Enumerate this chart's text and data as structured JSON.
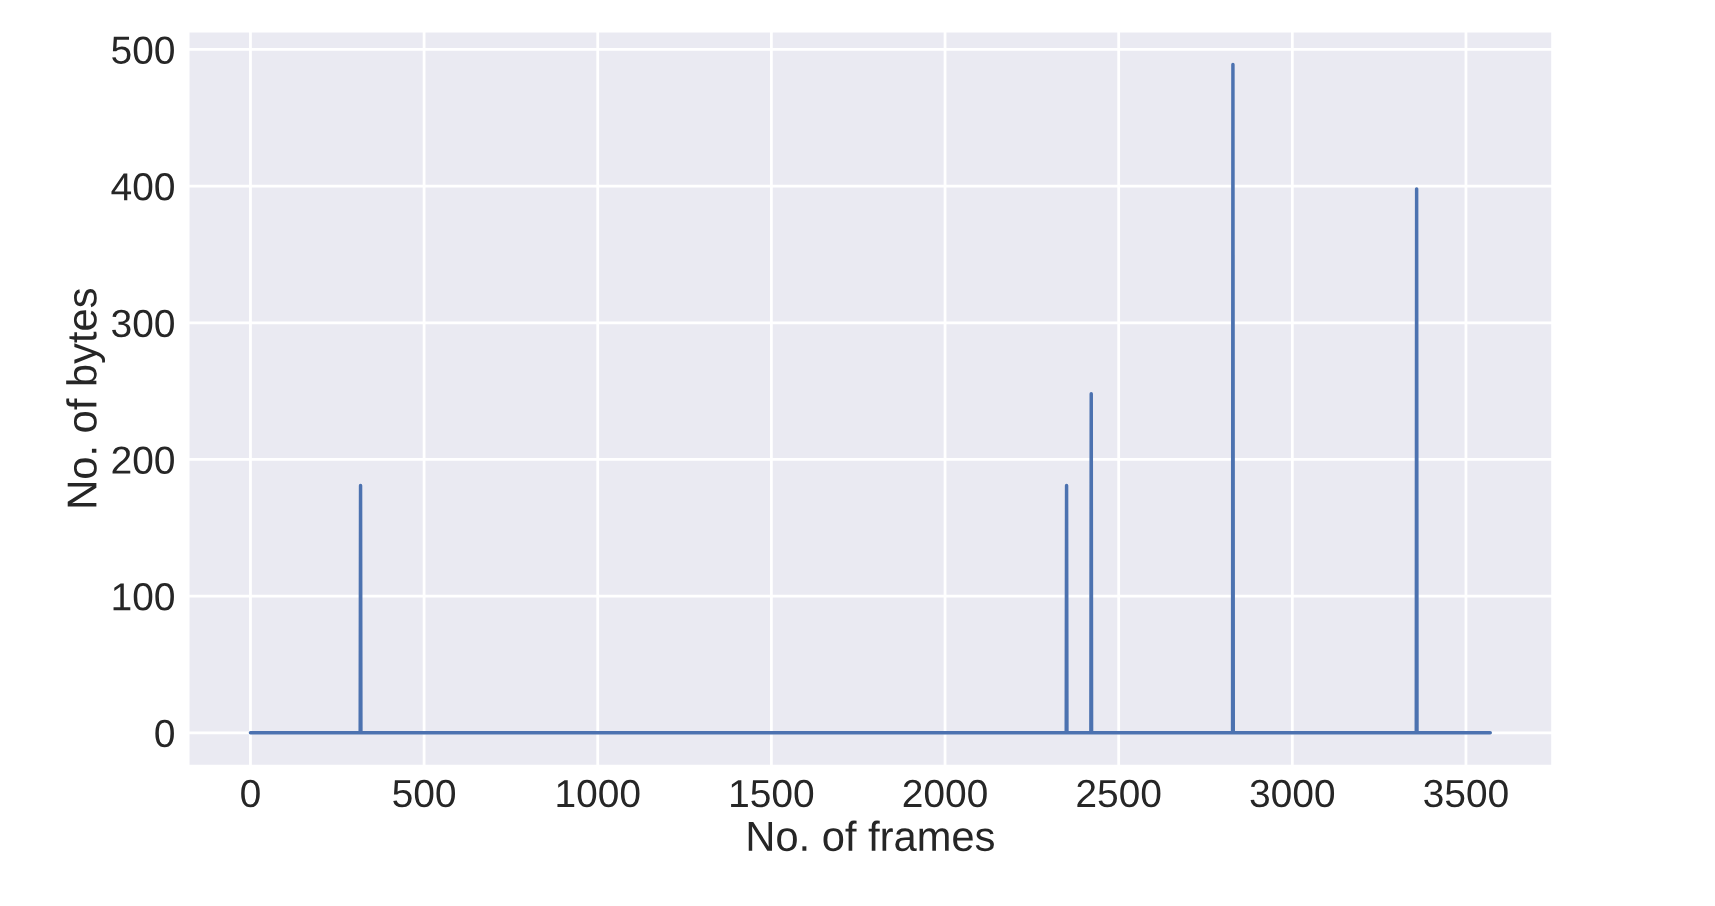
{
  "chart_data": {
    "type": "line",
    "xlabel": "No. of frames",
    "ylabel": "No. of bytes",
    "series": [
      {
        "color": "#4c72b0",
        "x": [
          0,
          316,
          317,
          318,
          2349,
          2350,
          2351,
          2420,
          2421,
          2422,
          2828,
          2829,
          2830,
          3357,
          3358,
          3359,
          3570
        ],
        "values": [
          0,
          0,
          181,
          0,
          0,
          181,
          0,
          0,
          248,
          0,
          0,
          489,
          0,
          0,
          398,
          0,
          0
        ]
      }
    ],
    "xlim": [
      -178,
      3748
    ],
    "ylim": [
      -24,
      513
    ],
    "xticks": [
      0,
      500,
      1000,
      1500,
      2000,
      2500,
      3000,
      3500
    ],
    "yticks": [
      0,
      100,
      200,
      300,
      400,
      500
    ],
    "grid": true,
    "legend": false
  }
}
